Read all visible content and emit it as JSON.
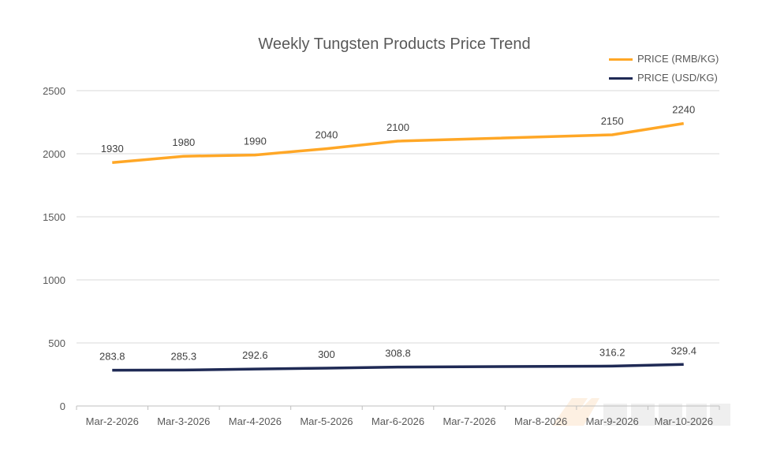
{
  "chart_data": {
    "type": "line",
    "title": "Weekly Tungsten Products Price Trend",
    "categories": [
      "Mar-2-2026",
      "Mar-3-2026",
      "Mar-4-2026",
      "Mar-5-2026",
      "Mar-6-2026",
      "Mar-7-2026",
      "Mar-8-2026",
      "Mar-9-2026",
      "Mar-10-2026"
    ],
    "series": [
      {
        "name": "PRICE (RMB/KG)",
        "color": "#FFA726",
        "values": [
          1930,
          1980,
          1990,
          2040,
          2100,
          null,
          null,
          2150,
          2240
        ]
      },
      {
        "name": "PRICE (USD/KG)",
        "color": "#1F2A55",
        "values": [
          283.8,
          285.3,
          292.6,
          300,
          308.8,
          null,
          null,
          316.2,
          329.4
        ]
      }
    ],
    "ylim": [
      0,
      2500
    ],
    "yticks": [
      0,
      500,
      1000,
      1500,
      2000,
      2500
    ],
    "grid": true,
    "legend": "top-right",
    "xlabel": "",
    "ylabel": ""
  }
}
